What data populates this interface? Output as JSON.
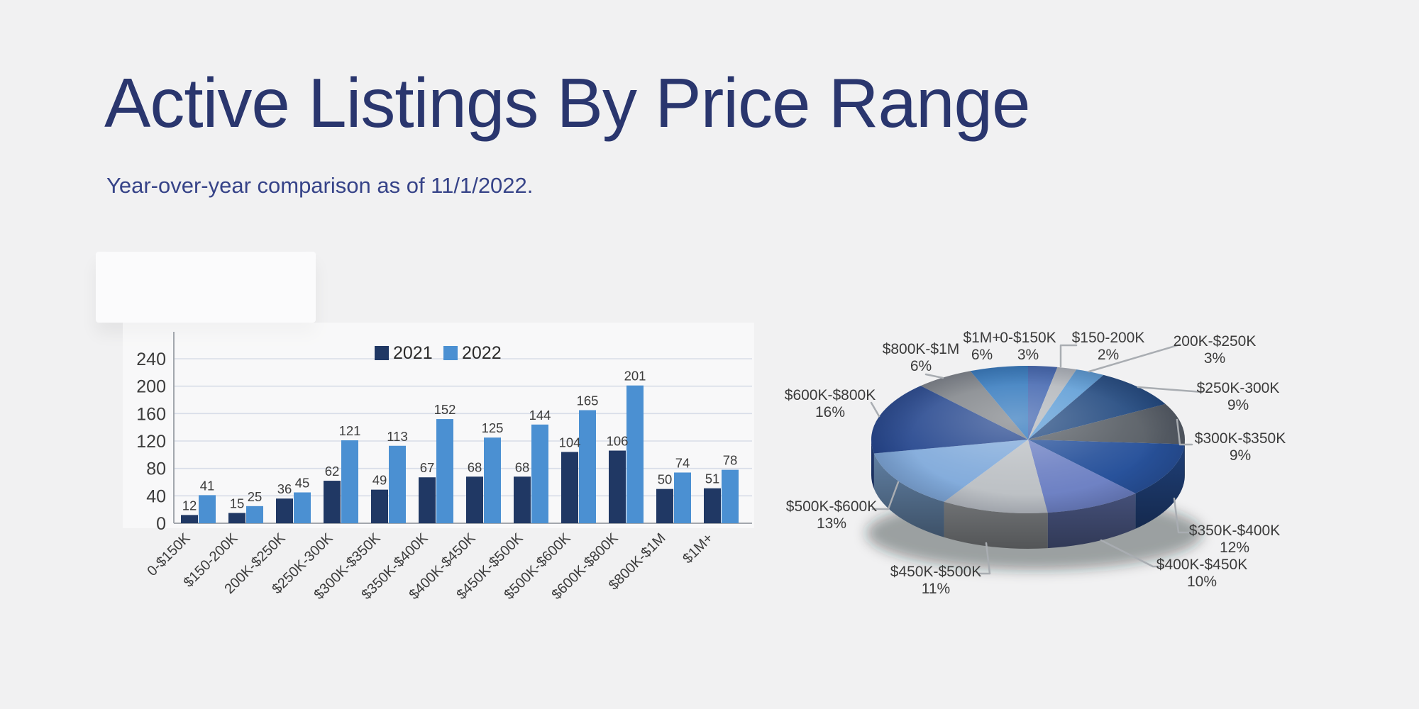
{
  "header": {
    "title": "Active Listings By Price Range",
    "subtitle": "Year-over-year comparison as of 11/1/2022."
  },
  "colors": {
    "background": "#F1F1F2",
    "title_text": "#2A366E",
    "subtitle_text": "#364388",
    "chart_text": "#3C3C3C",
    "gridline": "#D7DDE8",
    "axis_line": "#A3A7AD",
    "leader_line": "#A9ADB2",
    "series_2021": "#203864",
    "series_2022": "#4B90D2"
  },
  "chart_data": [
    {
      "type": "bar",
      "title": "",
      "categories": [
        "0-$150K",
        "$150-200K",
        "200K-$250K",
        "$250K-300K",
        "$300K-$350K",
        "$350K-$400K",
        "$400K-$450K",
        "$450K-$500K",
        "$500K-$600K",
        "$600K-$800K",
        "$800K-$1M",
        "$1M+"
      ],
      "series": [
        {
          "name": "2021",
          "color": "#203864",
          "values": [
            12,
            15,
            36,
            62,
            49,
            67,
            68,
            68,
            104,
            106,
            50,
            51
          ]
        },
        {
          "name": "2022",
          "color": "#4B90D2",
          "values": [
            41,
            25,
            45,
            121,
            113,
            152,
            125,
            144,
            165,
            201,
            74,
            78
          ]
        }
      ],
      "ylim": [
        0,
        240
      ],
      "yticks": [
        0,
        40,
        80,
        120,
        160,
        200,
        240
      ],
      "grid": true,
      "legend_position": "top",
      "data_labels": true
    },
    {
      "type": "pie",
      "style": "3d",
      "labels": [
        "0-$150K",
        "$150-200K",
        "200K-$250K",
        "$250K-300K",
        "$300K-$350K",
        "$350K-$400K",
        "$400K-$450K",
        "$450K-$500K",
        "$500K-$600K",
        "$600K-$800K",
        "$800K-$1M",
        "$1M+"
      ],
      "values": [
        3,
        2,
        3,
        9,
        9,
        12,
        10,
        11,
        13,
        16,
        6,
        6
      ],
      "unit": "%",
      "colors": [
        "#3F63AE",
        "#B2B6BB",
        "#5B9BD5",
        "#234A80",
        "#595F66",
        "#28529B",
        "#6F82C4",
        "#BDC1C5",
        "#82ABDB",
        "#27488F",
        "#7E8287",
        "#2F76BC"
      ],
      "legend_position": "none"
    }
  ]
}
